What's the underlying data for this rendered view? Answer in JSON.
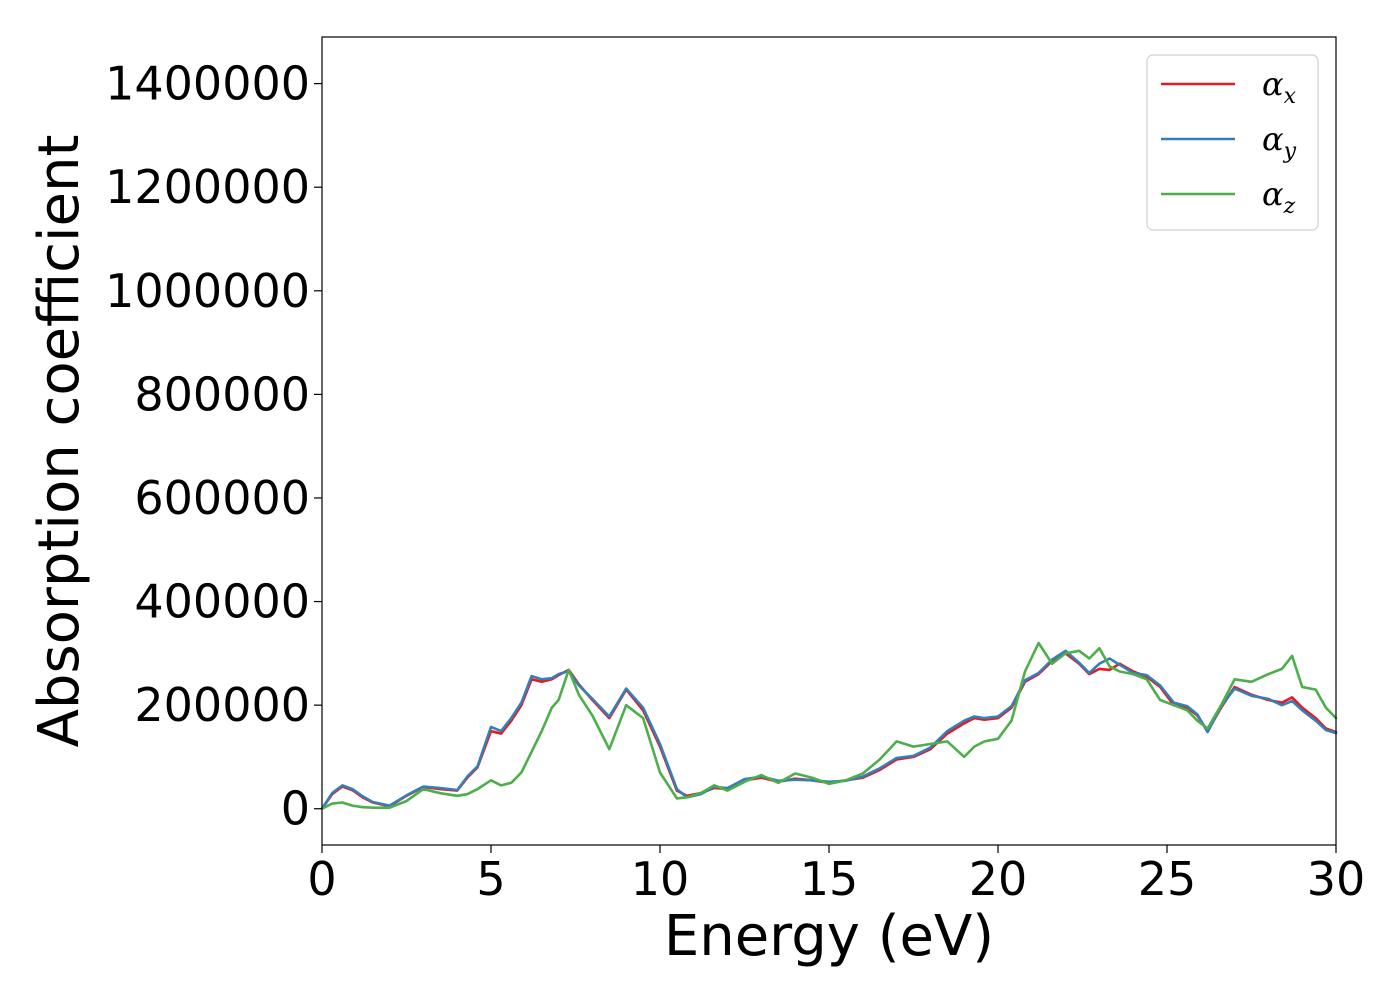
{
  "chart_data": {
    "type": "line",
    "xlabel": "Energy (eV)",
    "ylabel": "Absorption coefficient",
    "xlim": [
      0,
      30
    ],
    "ylim": [
      -70000,
      1490000
    ],
    "x_ticks": [
      0,
      5,
      10,
      15,
      20,
      25,
      30
    ],
    "x_tick_labels": [
      "0",
      "5",
      "10",
      "15",
      "20",
      "25",
      "30"
    ],
    "y_ticks": [
      0,
      200000,
      400000,
      600000,
      800000,
      1000000,
      1200000,
      1400000
    ],
    "y_tick_labels": [
      "0",
      "200000",
      "400000",
      "600000",
      "800000",
      "1000000",
      "1200000",
      "1400000"
    ],
    "grid": false,
    "legend_position": "top-right",
    "x": [
      0,
      0.3,
      0.6,
      0.9,
      1.2,
      1.5,
      2.0,
      2.5,
      3.0,
      3.5,
      4.0,
      4.3,
      4.6,
      5.0,
      5.3,
      5.6,
      5.9,
      6.2,
      6.5,
      6.8,
      7.0,
      7.3,
      7.6,
      8.0,
      8.5,
      9.0,
      9.5,
      10.0,
      10.5,
      10.8,
      11.2,
      11.6,
      12.0,
      12.5,
      13.0,
      13.5,
      14.0,
      14.5,
      15.0,
      15.5,
      16.0,
      16.5,
      17.0,
      17.5,
      18.0,
      18.5,
      19.0,
      19.3,
      19.6,
      20.0,
      20.4,
      20.8,
      21.2,
      21.6,
      22.0,
      22.4,
      22.7,
      23.0,
      23.3,
      23.6,
      24.0,
      24.4,
      24.8,
      25.2,
      25.6,
      25.9,
      26.2,
      26.6,
      27.0,
      27.5,
      28.0,
      28.4,
      28.7,
      29.0,
      29.4,
      29.7,
      30.0
    ],
    "series": [
      {
        "name": "α",
        "subscript": "x",
        "color": "#e41a1c",
        "values": [
          0,
          28000,
          43000,
          36000,
          22000,
          12000,
          5000,
          25000,
          42000,
          38000,
          35000,
          60000,
          80000,
          150000,
          145000,
          170000,
          200000,
          250000,
          245000,
          250000,
          258000,
          268000,
          240000,
          210000,
          175000,
          230000,
          190000,
          120000,
          35000,
          25000,
          30000,
          40000,
          38000,
          55000,
          60000,
          52000,
          58000,
          55000,
          50000,
          55000,
          60000,
          75000,
          95000,
          100000,
          115000,
          145000,
          165000,
          175000,
          172000,
          175000,
          195000,
          245000,
          260000,
          285000,
          300000,
          280000,
          260000,
          270000,
          268000,
          280000,
          265000,
          255000,
          235000,
          200000,
          195000,
          180000,
          150000,
          195000,
          235000,
          220000,
          210000,
          205000,
          215000,
          195000,
          175000,
          155000,
          148000
        ]
      },
      {
        "name": "α",
        "subscript": "y",
        "color": "#377eb8",
        "values": [
          0,
          30000,
          45000,
          38000,
          24000,
          13000,
          6000,
          26000,
          43000,
          40000,
          36000,
          62000,
          82000,
          158000,
          150000,
          175000,
          205000,
          256000,
          250000,
          252000,
          260000,
          266000,
          238000,
          212000,
          178000,
          232000,
          195000,
          125000,
          38000,
          22000,
          28000,
          42000,
          40000,
          57000,
          62000,
          54000,
          56000,
          55000,
          52000,
          54000,
          62000,
          78000,
          98000,
          102000,
          118000,
          150000,
          170000,
          178000,
          175000,
          178000,
          198000,
          248000,
          262000,
          288000,
          305000,
          282000,
          262000,
          280000,
          290000,
          278000,
          262000,
          258000,
          238000,
          205000,
          198000,
          182000,
          148000,
          198000,
          232000,
          218000,
          212000,
          200000,
          208000,
          190000,
          170000,
          152000,
          146000
        ]
      },
      {
        "name": "α",
        "subscript": "z",
        "color": "#4daf4a",
        "values": [
          0,
          10000,
          12000,
          6000,
          3000,
          2000,
          2000,
          15000,
          38000,
          30000,
          25000,
          28000,
          38000,
          55000,
          45000,
          50000,
          70000,
          110000,
          150000,
          195000,
          210000,
          268000,
          220000,
          180000,
          115000,
          200000,
          175000,
          70000,
          20000,
          22000,
          30000,
          45000,
          35000,
          52000,
          65000,
          50000,
          68000,
          60000,
          48000,
          55000,
          68000,
          95000,
          130000,
          120000,
          125000,
          130000,
          100000,
          120000,
          130000,
          135000,
          170000,
          265000,
          320000,
          280000,
          300000,
          305000,
          290000,
          310000,
          275000,
          265000,
          260000,
          250000,
          210000,
          200000,
          190000,
          170000,
          155000,
          200000,
          250000,
          245000,
          260000,
          270000,
          295000,
          235000,
          230000,
          195000,
          175000
        ]
      }
    ]
  }
}
